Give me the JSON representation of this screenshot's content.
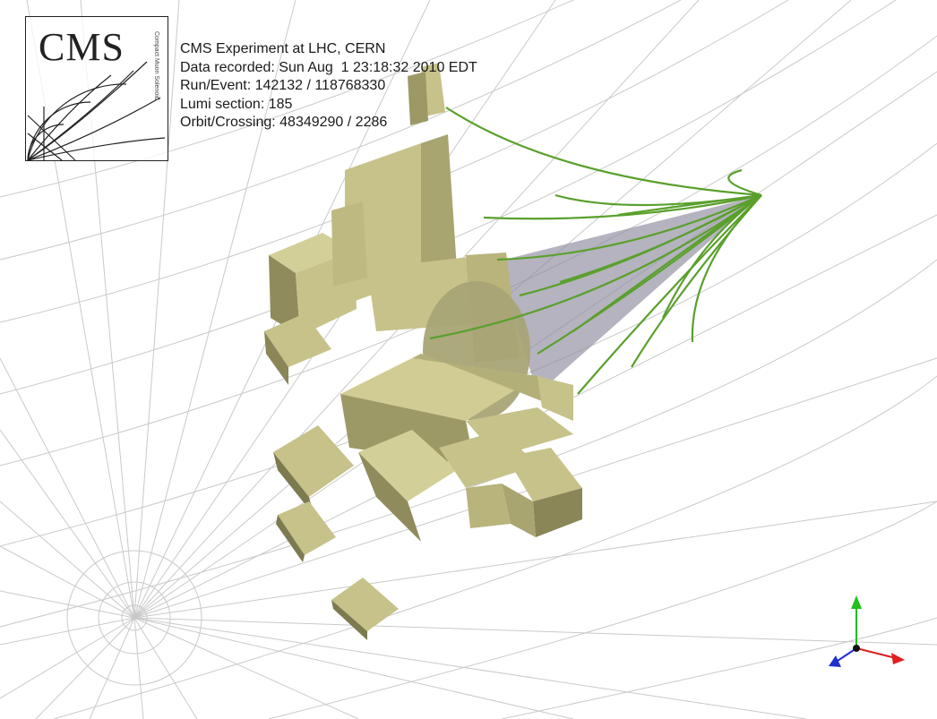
{
  "logo": {
    "text": "CMS",
    "subtitle": "Compact Muon Solenoid"
  },
  "event_info": {
    "experiment": "CMS Experiment at LHC, CERN",
    "data_recorded": "Data recorded: Sun Aug  1 23:18:32 2010 EDT",
    "run_event": "Run/Event: 142132 / 118768330",
    "lumi_section": "Lumi section: 185",
    "orbit_crossing": "Orbit/Crossing: 48349290 / 2286"
  },
  "colors": {
    "calorimeter_tower": "#c6c28a",
    "tower_shade": "#8a8658",
    "tracks": "#5aa02c",
    "jet_cone": "#9a97a6",
    "grid": "#c8c8c8",
    "axis_x": "#e02020",
    "axis_y": "#20c020",
    "axis_z": "#2030d0"
  }
}
